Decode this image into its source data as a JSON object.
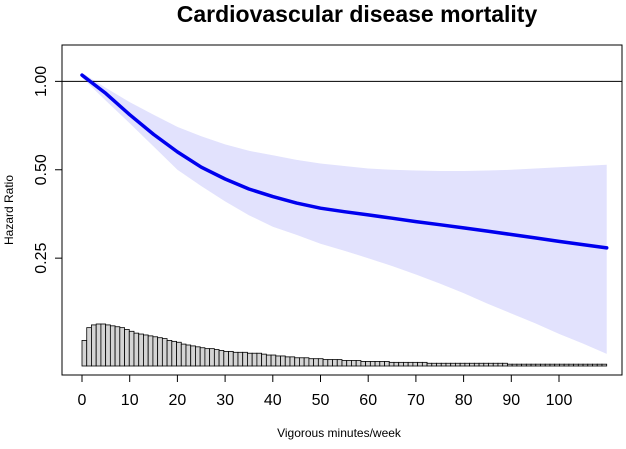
{
  "chart_data": {
    "type": "line",
    "title": "Cardiovascular disease mortality",
    "xlabel": "Vigorous minutes/week",
    "ylabel": "Hazard Ratio",
    "x_ticks": [
      0,
      10,
      20,
      30,
      40,
      50,
      60,
      70,
      80,
      90,
      100
    ],
    "y_ticks": [
      {
        "value": 0.25,
        "label": "0.25"
      },
      {
        "value": 0.5,
        "label": "0.50"
      },
      {
        "value": 1.0,
        "label": "1.00"
      }
    ],
    "xlim": [
      -3,
      114
    ],
    "ylim": [
      0.1,
      1.33
    ],
    "y_scale": "log",
    "reference_line": 1.0,
    "grid": false,
    "legend": "none",
    "colors": {
      "line": "#0000ee",
      "ci_band": "#e2e2fd",
      "histogram_bar": "#d4d4d4",
      "axis": "#000000"
    },
    "series": [
      {
        "x": [
          0,
          5,
          10,
          15,
          20,
          25,
          30,
          35,
          40,
          45,
          50,
          55,
          60,
          65,
          70,
          75,
          80,
          85,
          90,
          95,
          100,
          105,
          110
        ],
        "y": [
          1.05,
          0.91,
          0.77,
          0.66,
          0.575,
          0.51,
          0.465,
          0.43,
          0.405,
          0.385,
          0.37,
          0.36,
          0.351,
          0.342,
          0.333,
          0.325,
          0.317,
          0.309,
          0.301,
          0.293,
          0.285,
          0.278,
          0.271
        ]
      }
    ],
    "ci_band": {
      "x": [
        0,
        5,
        10,
        15,
        20,
        25,
        30,
        35,
        40,
        45,
        50,
        55,
        60,
        65,
        70,
        75,
        80,
        85,
        90,
        95,
        100,
        105,
        110
      ],
      "lower": [
        1.03,
        0.86,
        0.72,
        0.6,
        0.5,
        0.44,
        0.39,
        0.35,
        0.32,
        0.3,
        0.28,
        0.265,
        0.25,
        0.235,
        0.22,
        0.205,
        0.19,
        0.175,
        0.162,
        0.15,
        0.138,
        0.128,
        0.118
      ],
      "upper": [
        1.07,
        0.95,
        0.85,
        0.77,
        0.7,
        0.65,
        0.61,
        0.58,
        0.56,
        0.54,
        0.525,
        0.515,
        0.505,
        0.5,
        0.497,
        0.495,
        0.495,
        0.497,
        0.5,
        0.505,
        0.51,
        0.515,
        0.52
      ]
    },
    "histogram": {
      "counts": [
        28,
        42,
        45,
        46,
        46,
        45,
        44,
        43,
        42,
        40,
        38,
        36,
        35,
        34,
        33,
        32,
        31,
        30,
        28,
        27,
        26,
        24,
        23,
        22,
        21,
        20,
        19,
        19,
        18,
        17,
        16,
        16,
        15,
        15,
        15,
        14,
        14,
        14,
        13,
        12,
        12,
        11,
        11,
        10,
        10,
        9,
        9,
        9,
        8,
        8,
        8,
        7,
        7,
        7,
        7,
        6,
        6,
        6,
        6,
        5,
        5,
        5,
        5,
        5,
        5,
        4,
        4,
        4,
        4,
        4,
        4,
        4,
        4,
        3,
        3,
        3,
        3,
        3,
        3,
        3,
        3,
        3,
        3,
        3,
        3,
        3,
        3,
        3,
        3,
        3,
        2,
        2,
        2,
        2,
        2,
        2,
        2,
        2,
        2,
        2,
        2,
        2,
        2,
        2,
        2,
        2,
        2,
        2,
        2,
        2,
        2
      ]
    }
  }
}
